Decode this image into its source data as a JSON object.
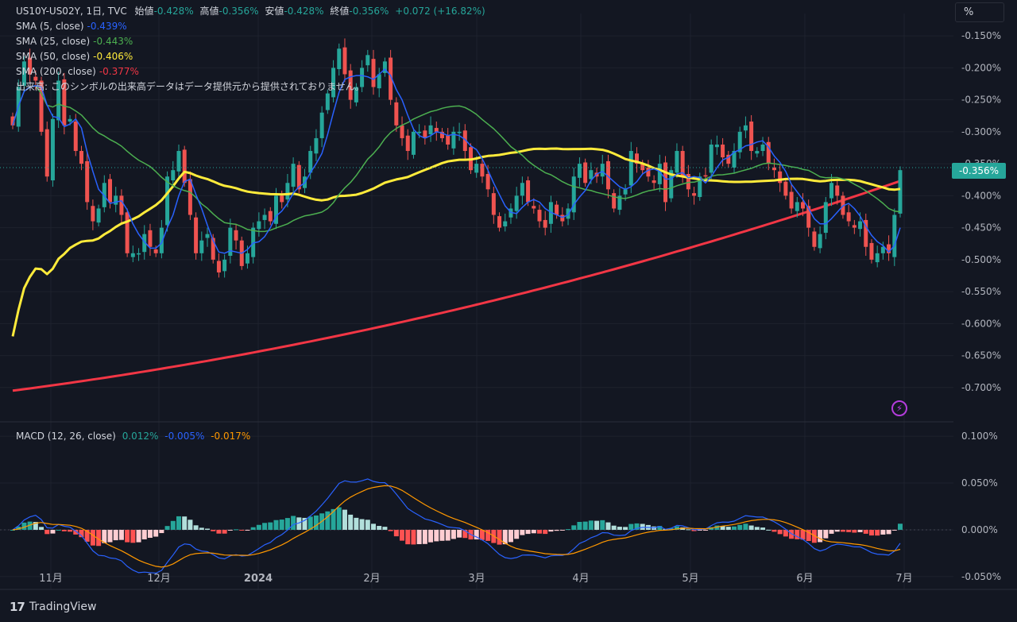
{
  "header": {
    "symbol_line": "US10Y-US02Y, 1日, TVC",
    "open_label": "始値",
    "open": "-0.428%",
    "high_label": "高値",
    "high": "-0.356%",
    "low_label": "安値",
    "low": "-0.428%",
    "close_label": "終値",
    "close": "-0.356%",
    "change": "+0.072 (+16.82%)",
    "sma5_label": "SMA (5, close)",
    "sma5_value": "-0.439%",
    "sma25_label": "SMA (25, close)",
    "sma25_value": "-0.443%",
    "sma50_label": "SMA (50, close)",
    "sma50_value": "-0.406%",
    "sma200_label": "SMA (200, close)",
    "sma200_value": "-0.377%",
    "volume_note": "出来高: このシンボルの出来高データはデータ提供元から提供されておりません。",
    "macd_label": "MACD (12, 26, close)",
    "macd_hist": "0.012%",
    "macd_line": "-0.005%",
    "macd_signal": "-0.017%"
  },
  "unit_button": "%",
  "last_price_tag": "-0.356%",
  "footer": {
    "logo_mark": "17",
    "brand": "TradingView"
  },
  "colors": {
    "background": "#131722",
    "up": "#26a69a",
    "down": "#ef5350",
    "sma5": "#2962ff",
    "sma25": "#4caf50",
    "sma50": "#ffeb3b",
    "sma200": "#f23645",
    "macd": "#2962ff",
    "signal": "#ff9800",
    "hist_up_strong": "#26a69a",
    "hist_up_weak": "#b2dfdb",
    "hist_down_strong": "#ff5252",
    "hist_down_weak": "#ffcdd2"
  },
  "chart_data": [
    {
      "type": "candlestick",
      "title": "US10Y-US02Y",
      "x_ticks": [
        "11月",
        "12月",
        "2024",
        "2月",
        "3月",
        "4月",
        "5月",
        "6月",
        "7月"
      ],
      "y_ticks": [
        "-0.150%",
        "-0.200%",
        "-0.250%",
        "-0.300%",
        "-0.350%",
        "-0.400%",
        "-0.450%",
        "-0.500%",
        "-0.550%",
        "-0.600%",
        "-0.650%",
        "-0.700%"
      ],
      "ylim": [
        -0.74,
        -0.115
      ],
      "close_series": [
        -0.29,
        -0.23,
        -0.19,
        -0.21,
        -0.22,
        -0.3,
        -0.37,
        -0.28,
        -0.22,
        -0.29,
        -0.28,
        -0.33,
        -0.35,
        -0.41,
        -0.44,
        -0.42,
        -0.38,
        -0.41,
        -0.4,
        -0.43,
        -0.49,
        -0.49,
        -0.49,
        -0.46,
        -0.48,
        -0.49,
        -0.45,
        -0.37,
        -0.36,
        -0.33,
        -0.38,
        -0.43,
        -0.49,
        -0.47,
        -0.46,
        -0.5,
        -0.52,
        -0.5,
        -0.45,
        -0.47,
        -0.51,
        -0.49,
        -0.45,
        -0.44,
        -0.43,
        -0.44,
        -0.4,
        -0.41,
        -0.38,
        -0.35,
        -0.39,
        -0.37,
        -0.33,
        -0.31,
        -0.27,
        -0.24,
        -0.2,
        -0.17,
        -0.21,
        -0.25,
        -0.23,
        -0.2,
        -0.18,
        -0.23,
        -0.21,
        -0.19,
        -0.25,
        -0.29,
        -0.31,
        -0.33,
        -0.3,
        -0.3,
        -0.31,
        -0.29,
        -0.3,
        -0.31,
        -0.32,
        -0.3,
        -0.3,
        -0.33,
        -0.36,
        -0.35,
        -0.37,
        -0.39,
        -0.43,
        -0.45,
        -0.44,
        -0.42,
        -0.4,
        -0.38,
        -0.41,
        -0.42,
        -0.44,
        -0.45,
        -0.41,
        -0.43,
        -0.44,
        -0.42,
        -0.37,
        -0.35,
        -0.38,
        -0.36,
        -0.37,
        -0.35,
        -0.39,
        -0.42,
        -0.4,
        -0.39,
        -0.33,
        -0.35,
        -0.36,
        -0.37,
        -0.38,
        -0.35,
        -0.41,
        -0.36,
        -0.33,
        -0.37,
        -0.39,
        -0.4,
        -0.37,
        -0.37,
        -0.32,
        -0.32,
        -0.34,
        -0.35,
        -0.33,
        -0.3,
        -0.29,
        -0.33,
        -0.33,
        -0.32,
        -0.35,
        -0.36,
        -0.38,
        -0.4,
        -0.42,
        -0.41,
        -0.42,
        -0.45,
        -0.48,
        -0.46,
        -0.41,
        -0.38,
        -0.4,
        -0.43,
        -0.44,
        -0.45,
        -0.44,
        -0.48,
        -0.5,
        -0.49,
        -0.48,
        -0.49,
        -0.43,
        -0.36
      ],
      "series": [
        {
          "name": "SMA (5, close)",
          "last": -0.439
        },
        {
          "name": "SMA (25, close)",
          "last": -0.443
        },
        {
          "name": "SMA (50, close)",
          "last": -0.406
        },
        {
          "name": "SMA (200, close)",
          "last": -0.377
        }
      ],
      "last_close": -0.356
    },
    {
      "type": "macd",
      "title": "MACD (12, 26, close)",
      "y_ticks": [
        "0.100%",
        "0.050%",
        "0.000%",
        "-0.050%"
      ],
      "ylim": [
        -0.062,
        0.112
      ],
      "last": {
        "histogram": 0.012,
        "macd": -0.005,
        "signal": -0.017
      }
    }
  ]
}
